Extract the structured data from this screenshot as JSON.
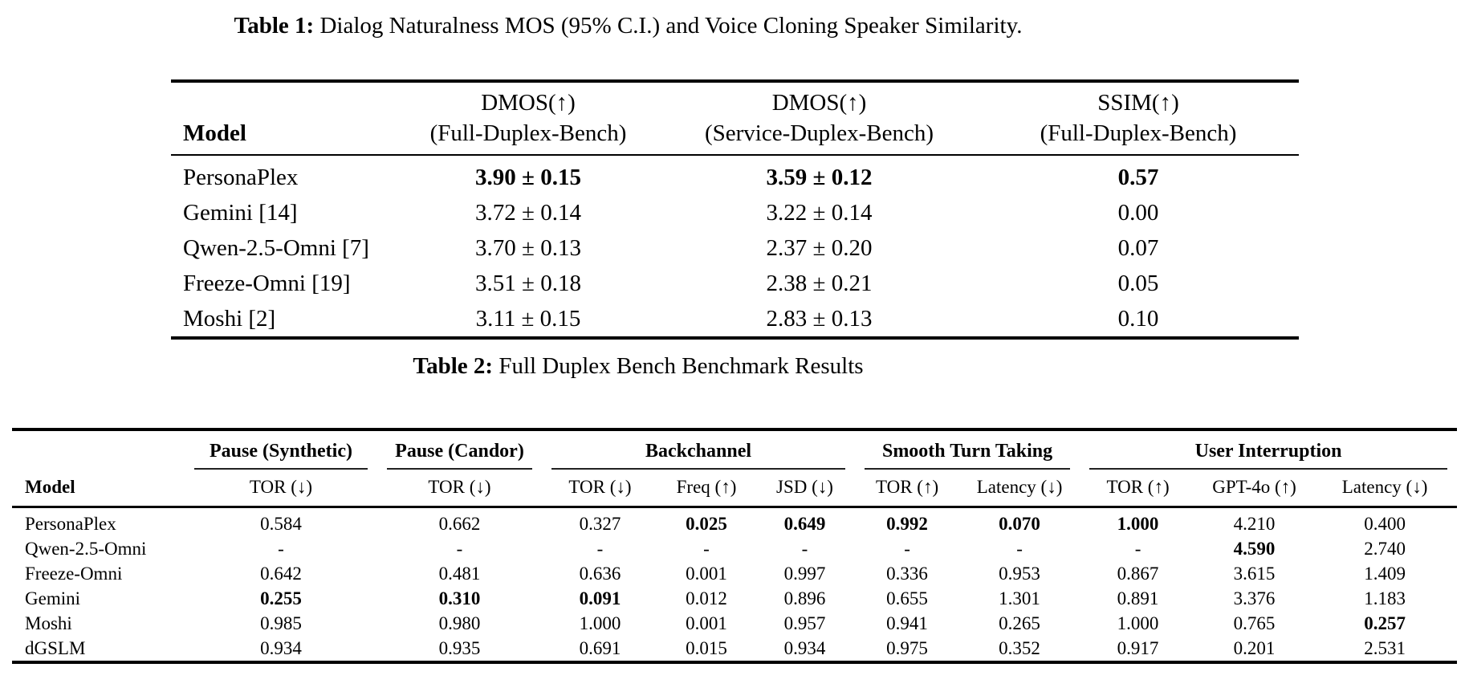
{
  "table1": {
    "caption_label": "Table 1:",
    "caption_text": " Dialog Naturalness MOS (95% C.I.) and Voice Cloning Speaker Similarity.",
    "columns": [
      {
        "line1": "",
        "line2": "Model"
      },
      {
        "line1": "DMOS(↑)",
        "line2": "(Full-Duplex-Bench)"
      },
      {
        "line1": "DMOS(↑)",
        "line2": "(Service-Duplex-Bench)"
      },
      {
        "line1": "SSIM(↑)",
        "line2": "(Full-Duplex-Bench)"
      }
    ],
    "rows": [
      {
        "model": "PersonaPlex",
        "values": [
          "3.90 ± 0.15",
          "3.59 ± 0.12",
          "0.57"
        ],
        "bold": [
          1,
          1,
          1
        ]
      },
      {
        "model": "Gemini [14]",
        "values": [
          "3.72 ± 0.14",
          "3.22 ± 0.14",
          "0.00"
        ],
        "bold": [
          0,
          0,
          0
        ]
      },
      {
        "model": "Qwen-2.5-Omni [7]",
        "values": [
          "3.70 ± 0.13",
          "2.37 ± 0.20",
          "0.07"
        ],
        "bold": [
          0,
          0,
          0
        ]
      },
      {
        "model": "Freeze-Omni [19]",
        "values": [
          "3.51 ± 0.18",
          "2.38 ± 0.21",
          "0.05"
        ],
        "bold": [
          0,
          0,
          0
        ]
      },
      {
        "model": "Moshi [2]",
        "values": [
          "3.11 ± 0.15",
          "2.83 ± 0.13",
          "0.10"
        ],
        "bold": [
          0,
          0,
          0
        ]
      }
    ]
  },
  "table2": {
    "caption_label": "Table 2:",
    "caption_text": " Full Duplex Bench Benchmark Results",
    "groups": [
      {
        "label": "Pause (Synthetic)"
      },
      {
        "label": "Pause (Candor)"
      },
      {
        "label": "Backchannel"
      },
      {
        "label": "Smooth Turn Taking"
      },
      {
        "label": "User Interruption"
      }
    ],
    "subheaders": [
      "Model",
      "TOR (↓)",
      "TOR (↓)",
      "TOR (↓)",
      "Freq (↑)",
      "JSD (↓)",
      "TOR (↑)",
      "Latency (↓)",
      "TOR (↑)",
      "GPT-4o (↑)",
      "Latency (↓)"
    ],
    "rows": [
      {
        "model": "PersonaPlex",
        "values": [
          "0.584",
          "0.662",
          "0.327",
          "0.025",
          "0.649",
          "0.992",
          "0.070",
          "1.000",
          "4.210",
          "0.400"
        ],
        "bold": [
          0,
          0,
          0,
          1,
          1,
          1,
          1,
          1,
          0,
          0
        ]
      },
      {
        "model": "Qwen-2.5-Omni",
        "values": [
          "-",
          "-",
          "-",
          "-",
          "-",
          "-",
          "-",
          "-",
          "4.590",
          "2.740"
        ],
        "bold": [
          0,
          0,
          0,
          0,
          0,
          0,
          0,
          0,
          1,
          0
        ]
      },
      {
        "model": "Freeze-Omni",
        "values": [
          "0.642",
          "0.481",
          "0.636",
          "0.001",
          "0.997",
          "0.336",
          "0.953",
          "0.867",
          "3.615",
          "1.409"
        ],
        "bold": [
          0,
          0,
          0,
          0,
          0,
          0,
          0,
          0,
          0,
          0
        ]
      },
      {
        "model": "Gemini",
        "values": [
          "0.255",
          "0.310",
          "0.091",
          "0.012",
          "0.896",
          "0.655",
          "1.301",
          "0.891",
          "3.376",
          "1.183"
        ],
        "bold": [
          1,
          1,
          1,
          0,
          0,
          0,
          0,
          0,
          0,
          0
        ]
      },
      {
        "model": "Moshi",
        "values": [
          "0.985",
          "0.980",
          "1.000",
          "0.001",
          "0.957",
          "0.941",
          "0.265",
          "1.000",
          "0.765",
          "0.257"
        ],
        "bold": [
          0,
          0,
          0,
          0,
          0,
          0,
          0,
          0,
          0,
          1
        ]
      },
      {
        "model": "dGSLM",
        "values": [
          "0.934",
          "0.935",
          "0.691",
          "0.015",
          "0.934",
          "0.975",
          "0.352",
          "0.917",
          "0.201",
          "2.531"
        ],
        "bold": [
          0,
          0,
          0,
          0,
          0,
          0,
          0,
          0,
          0,
          0
        ]
      }
    ]
  }
}
